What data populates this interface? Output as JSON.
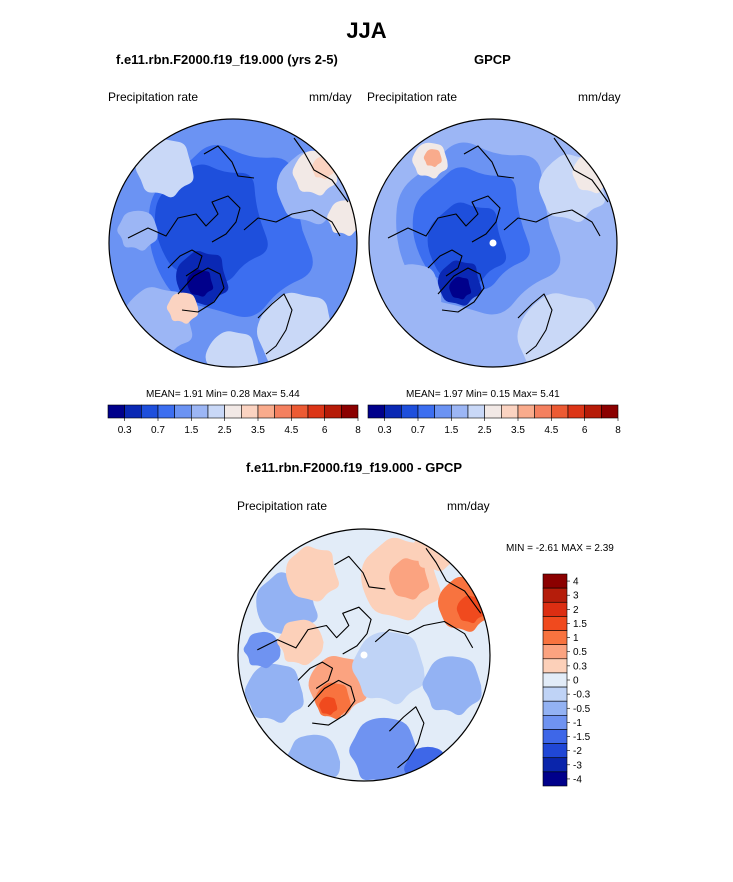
{
  "figure": {
    "title": "JJA"
  },
  "palette": {
    "abs": [
      "#00008b",
      "#0a28b4",
      "#1e4fdc",
      "#3c6ef0",
      "#6b93f3",
      "#9cb6f5",
      "#c9d8f7",
      "#f2e9e6",
      "#fbd3c1",
      "#f9ab8c",
      "#f4805f",
      "#ec5a33",
      "#dc3517",
      "#b61b08",
      "#8b0000"
    ],
    "diff": [
      "#8b0000",
      "#b51d0b",
      "#dc2e12",
      "#f04a1e",
      "#f8733f",
      "#fba380",
      "#fcd0b9",
      "#e2ecf8",
      "#bfd3f6",
      "#93b2f3",
      "#6f93f1",
      "#3e67e8",
      "#2047d6",
      "#0a25ab",
      "#00008b"
    ]
  },
  "panels": {
    "model": {
      "title": "f.e11.rbn.F2000.f19_f19.000 (yrs 2-5)",
      "left_label": "Precipitation rate",
      "right_label": "mm/day",
      "stats": "MEAN=   1.91  Min=   0.28  Max=   5.44"
    },
    "obs": {
      "title": "GPCP",
      "left_label": "Precipitation rate",
      "right_label": "mm/day",
      "stats": "MEAN=   1.97  Min=   0.15  Max=   5.41"
    },
    "diff": {
      "title": "f.e11.rbn.F2000.f19_f19.000 - GPCP",
      "left_label": "Precipitation rate",
      "right_label": "mm/day",
      "stats": "MIN =  -2.61 MAX =   2.39"
    }
  },
  "colorbar_abs": {
    "ticks": [
      "0.3",
      "0.7",
      "1.5",
      "2.5",
      "3.5",
      "4.5",
      "6",
      "8"
    ]
  },
  "colorbar_diff": {
    "ticks": [
      "4",
      "3",
      "2",
      "1.5",
      "1",
      "0.5",
      "0.3",
      "0",
      "-0.3",
      "-0.5",
      "-1",
      "-1.5",
      "-2",
      "-3",
      "-4"
    ]
  }
}
